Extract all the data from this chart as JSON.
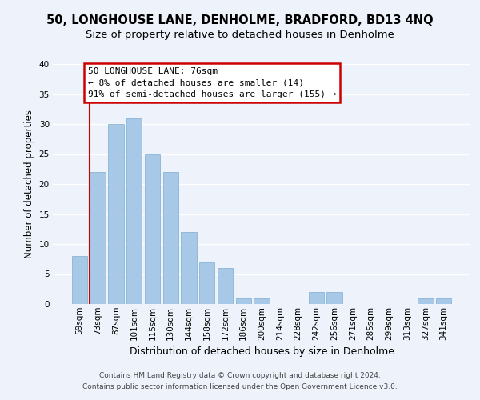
{
  "title": "50, LONGHOUSE LANE, DENHOLME, BRADFORD, BD13 4NQ",
  "subtitle": "Size of property relative to detached houses in Denholme",
  "xlabel": "Distribution of detached houses by size in Denholme",
  "ylabel": "Number of detached properties",
  "bar_labels": [
    "59sqm",
    "73sqm",
    "87sqm",
    "101sqm",
    "115sqm",
    "130sqm",
    "144sqm",
    "158sqm",
    "172sqm",
    "186sqm",
    "200sqm",
    "214sqm",
    "228sqm",
    "242sqm",
    "256sqm",
    "271sqm",
    "285sqm",
    "299sqm",
    "313sqm",
    "327sqm",
    "341sqm"
  ],
  "bar_values": [
    8,
    22,
    30,
    31,
    25,
    22,
    12,
    7,
    6,
    1,
    1,
    0,
    0,
    2,
    2,
    0,
    0,
    0,
    0,
    1,
    1
  ],
  "bar_color": "#a8c8e8",
  "bar_edge_color": "#7aaed0",
  "highlight_color": "#cc0000",
  "ylim": [
    0,
    40
  ],
  "yticks": [
    0,
    5,
    10,
    15,
    20,
    25,
    30,
    35,
    40
  ],
  "annotation_title": "50 LONGHOUSE LANE: 76sqm",
  "annotation_line1": "← 8% of detached houses are smaller (14)",
  "annotation_line2": "91% of semi-detached houses are larger (155) →",
  "annotation_box_color": "#ffffff",
  "annotation_box_edge": "#cc0000",
  "footer_line1": "Contains HM Land Registry data © Crown copyright and database right 2024.",
  "footer_line2": "Contains public sector information licensed under the Open Government Licence v3.0.",
  "bg_color": "#eef2fa",
  "grid_color": "#ffffff",
  "title_fontsize": 10.5,
  "subtitle_fontsize": 9.5,
  "tick_fontsize": 7.5,
  "ylabel_fontsize": 8.5,
  "xlabel_fontsize": 9,
  "footer_fontsize": 6.5
}
